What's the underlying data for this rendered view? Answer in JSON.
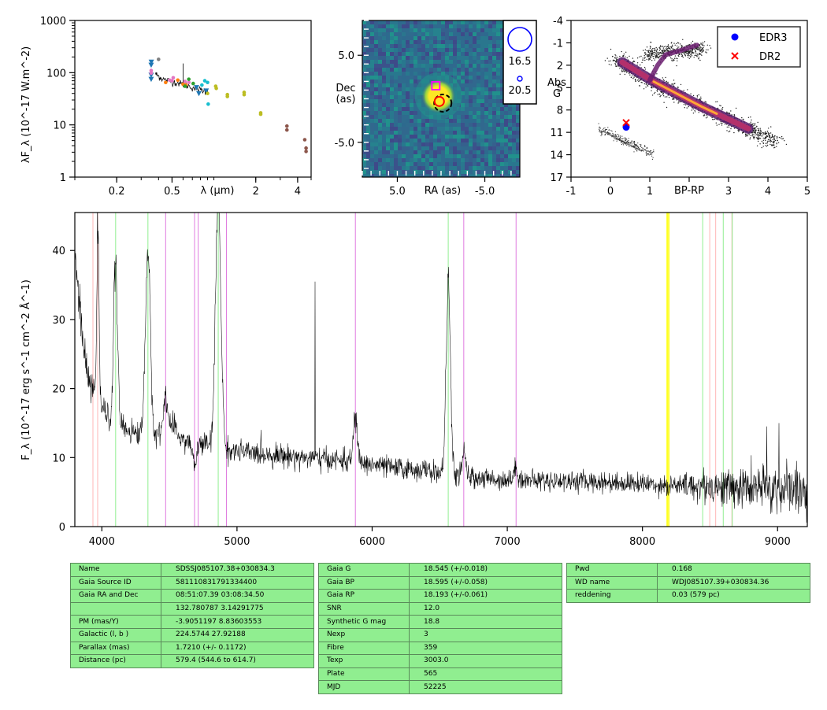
{
  "chart_data": [
    {
      "type": "scatter",
      "panel": "sed",
      "ylabel": "λF_λ (10^-17 W.m^-2)",
      "xlabel": "λ (μm)",
      "xscale": "log",
      "yscale": "log",
      "xlim": [
        0.1,
        5.0
      ],
      "ylim": [
        1,
        1000
      ],
      "xticks": [
        {
          "v": 0.2,
          "t": "0.2"
        },
        {
          "v": 0.5,
          "t": "0.5"
        },
        {
          "v": 2,
          "t": "2"
        },
        {
          "v": 4,
          "t": "4"
        }
      ],
      "yticks": [
        {
          "v": 1,
          "t": "1"
        },
        {
          "v": 10,
          "t": "10"
        },
        {
          "v": 100,
          "t": "100"
        },
        {
          "v": 1000,
          "t": "1000"
        }
      ],
      "series": [
        {
          "color": "#1f77b4",
          "marker": "triangle-down",
          "points": [
            [
              0.354,
              75
            ],
            [
              0.354,
              90
            ],
            [
              0.354,
              140
            ],
            [
              0.355,
              160
            ],
            [
              0.75,
              52
            ],
            [
              0.78,
              40
            ],
            [
              0.88,
              45
            ]
          ]
        },
        {
          "color": "#e377c2",
          "marker": "dot",
          "points": [
            [
              0.354,
              98
            ],
            [
              0.354,
              110
            ],
            [
              0.48,
              72
            ],
            [
              0.5,
              70
            ],
            [
              0.51,
              80
            ],
            [
              0.62,
              68
            ],
            [
              0.66,
              65
            ]
          ]
        },
        {
          "color": "#ff7f0e",
          "marker": "dot",
          "points": [
            [
              0.45,
              65
            ],
            [
              0.55,
              72
            ],
            [
              0.6,
              60
            ],
            [
              0.63,
              58
            ]
          ]
        },
        {
          "color": "#2ca02c",
          "marker": "dot",
          "points": [
            [
              0.62,
              55
            ],
            [
              0.66,
              75
            ],
            [
              0.71,
              62
            ]
          ]
        },
        {
          "color": "#17becf",
          "marker": "dot",
          "points": [
            [
              0.82,
              58
            ],
            [
              0.86,
              70
            ],
            [
              0.9,
              65
            ],
            [
              0.91,
              25
            ]
          ]
        },
        {
          "color": "#bcbd22",
          "marker": "dot",
          "points": [
            [
              0.9,
              40
            ],
            [
              1.03,
              55
            ],
            [
              1.04,
              50
            ],
            [
              1.25,
              38
            ],
            [
              1.25,
              35
            ],
            [
              1.65,
              42
            ],
            [
              1.65,
              38
            ],
            [
              2.17,
              17
            ],
            [
              2.17,
              16
            ]
          ]
        },
        {
          "color": "#8c564b",
          "marker": "dot",
          "points": [
            [
              3.35,
              9.5
            ],
            [
              3.35,
              8.0
            ],
            [
              4.5,
              5.2
            ],
            [
              4.6,
              3.6
            ],
            [
              4.6,
              3.1
            ]
          ]
        },
        {
          "color": "#7f7f7f",
          "marker": "dot",
          "points": [
            [
              0.4,
              180
            ]
          ]
        }
      ],
      "spectrum": [
        [
          0.38,
          95
        ],
        [
          0.4,
          86
        ],
        [
          0.42,
          78
        ],
        [
          0.45,
          72
        ],
        [
          0.48,
          70
        ],
        [
          0.52,
          66
        ],
        [
          0.56,
          63
        ],
        [
          0.6,
          60
        ],
        [
          0.65,
          56
        ],
        [
          0.7,
          52
        ],
        [
          0.75,
          49
        ],
        [
          0.8,
          47
        ],
        [
          0.86,
          45
        ],
        [
          0.91,
          44
        ]
      ]
    },
    {
      "type": "heatmap",
      "panel": "image",
      "xlabel": "RA (as)",
      "ylabel": "Dec\n(as)",
      "xlim": [
        9.0,
        -9.0
      ],
      "ylim": [
        -9.0,
        9.0
      ],
      "xticks": [
        {
          "v": 5.0,
          "t": "5.0"
        },
        {
          "v": -5.0,
          "t": "-5.0"
        }
      ],
      "yticks": [
        {
          "v": 5.0,
          "t": "5.0"
        },
        {
          "v": -5.0,
          "t": "-5.0"
        }
      ],
      "legend": [
        {
          "label": "16.5"
        },
        {
          "label": "20.5"
        }
      ]
    },
    {
      "type": "scatter",
      "panel": "hr",
      "xlabel": "BP-RP",
      "ylabel": "Abs\nG",
      "xlim": [
        -1,
        5
      ],
      "ylim": [
        17,
        -4
      ],
      "xticks": [
        {
          "v": -1,
          "t": "-1"
        },
        {
          "v": 0,
          "t": "0"
        },
        {
          "v": 1,
          "t": "1"
        },
        {
          "v": 3,
          "t": "3"
        },
        {
          "v": 4,
          "t": "4"
        },
        {
          "v": 5,
          "t": "5"
        }
      ],
      "yticks": [
        {
          "v": -4,
          "t": "-4"
        },
        {
          "v": -1,
          "t": "-1"
        },
        {
          "v": 2,
          "t": "2"
        },
        {
          "v": 5,
          "t": "5"
        },
        {
          "v": 8,
          "t": "8"
        },
        {
          "v": 11,
          "t": "11"
        },
        {
          "v": 14,
          "t": "14"
        },
        {
          "v": 17,
          "t": "17"
        }
      ],
      "series": [
        {
          "name": "EDR3",
          "color": "#0000ff",
          "marker": "dot",
          "points": [
            [
              0.4,
              10.3
            ]
          ]
        },
        {
          "name": "DR2",
          "color": "#ff0000",
          "marker": "x",
          "points": [
            [
              0.4,
              9.7
            ]
          ]
        }
      ],
      "legend": "upper right"
    },
    {
      "type": "line",
      "panel": "spectrum",
      "ylabel": "F_λ (10^-17 erg s^-1 cm^-2 Å^-1)",
      "xlim": [
        3800,
        9220
      ],
      "ylim": [
        0,
        45.5
      ],
      "xticks": [
        {
          "v": 4000,
          "t": "4000"
        },
        {
          "v": 5000,
          "t": "5000"
        },
        {
          "v": 6000,
          "t": "6000"
        },
        {
          "v": 7000,
          "t": "7000"
        },
        {
          "v": 8000,
          "t": "8000"
        },
        {
          "v": 9000,
          "t": "9000"
        }
      ],
      "yticks": [
        {
          "v": 0,
          "t": "0"
        },
        {
          "v": 10,
          "t": "10"
        },
        {
          "v": 20,
          "t": "20"
        },
        {
          "v": 30,
          "t": "30"
        },
        {
          "v": 40,
          "t": "40"
        }
      ],
      "continuum": [
        [
          3800,
          40
        ],
        [
          3830,
          33
        ],
        [
          3860,
          27
        ],
        [
          3890,
          22
        ],
        [
          3920,
          20
        ],
        [
          3960,
          19
        ],
        [
          4000,
          17.5
        ],
        [
          4050,
          15.5
        ],
        [
          4150,
          14.5
        ],
        [
          4250,
          13.5
        ],
        [
          4400,
          13.2
        ],
        [
          4500,
          15
        ],
        [
          4600,
          12.5
        ],
        [
          4750,
          12
        ],
        [
          4950,
          11
        ],
        [
          5200,
          10.5
        ],
        [
          5500,
          10
        ],
        [
          5800,
          9.5
        ],
        [
          6000,
          9
        ],
        [
          6200,
          8.4
        ],
        [
          6400,
          8.2
        ],
        [
          6550,
          7.5
        ],
        [
          6800,
          7
        ],
        [
          7000,
          6.8
        ],
        [
          7200,
          6.7
        ],
        [
          7500,
          6.6
        ],
        [
          7800,
          6.4
        ],
        [
          8000,
          6.2
        ],
        [
          8200,
          6
        ],
        [
          8500,
          5.8
        ],
        [
          8800,
          5.6
        ],
        [
          9000,
          5.4
        ],
        [
          9220,
          5.3
        ]
      ],
      "emission_lines": [
        [
          3970,
          43.5,
          8
        ],
        [
          4101,
          38.5,
          14
        ],
        [
          4340,
          40,
          18
        ],
        [
          4471,
          19.5,
          12
        ],
        [
          4686,
          9,
          16
        ],
        [
          4861,
          47,
          20
        ],
        [
          5876,
          16,
          14
        ],
        [
          6563,
          35.5,
          16
        ],
        [
          6678,
          10.5,
          14
        ],
        [
          7065,
          8.5,
          14
        ]
      ],
      "spikes": [
        [
          5577,
          35.5
        ],
        [
          8190,
          4.5
        ],
        [
          8920,
          14.5
        ],
        [
          9010,
          15
        ]
      ],
      "lines": [
        {
          "x": 3934,
          "color": "#ffb6b6"
        },
        {
          "x": 3969,
          "color": "#ffb6b6"
        },
        {
          "x": 4102,
          "color": "#90ee90"
        },
        {
          "x": 4341,
          "color": "#90ee90"
        },
        {
          "x": 4472,
          "color": "#e07be0"
        },
        {
          "x": 4686,
          "color": "#e07be0"
        },
        {
          "x": 4713,
          "color": "#e07be0"
        },
        {
          "x": 4861,
          "color": "#90ee90"
        },
        {
          "x": 4922,
          "color": "#e07be0"
        },
        {
          "x": 5876,
          "color": "#e07be0"
        },
        {
          "x": 6563,
          "color": "#90ee90"
        },
        {
          "x": 6678,
          "color": "#e07be0"
        },
        {
          "x": 7065,
          "color": "#e07be0"
        },
        {
          "x": 8183,
          "color": "#ffff00"
        },
        {
          "x": 8195,
          "color": "#ffff00"
        },
        {
          "x": 8446,
          "color": "#90ee90"
        },
        {
          "x": 8498,
          "color": "#ffb6b6"
        },
        {
          "x": 8542,
          "color": "#ffb6b6"
        },
        {
          "x": 8598,
          "color": "#90ee90"
        },
        {
          "x": 8662,
          "color": "#ffb6b6"
        },
        {
          "x": 8665,
          "color": "#90ee90"
        }
      ]
    }
  ],
  "tables": [
    [
      [
        "Name",
        "SDSSJ085107.38+030834.3"
      ],
      [
        "Gaia Source ID",
        "581110831791334400"
      ],
      [
        "Gaia RA and Dec",
        "08:51:07.39    03:08:34.50"
      ],
      [
        "",
        "132.780787    3.14291775"
      ],
      [
        "PM (mas/Y)",
        "-3.9051197    8.83603553"
      ],
      [
        "Galactic (l, b )",
        "224.5744    27.92188"
      ],
      [
        "Parallax (mas)",
        "1.7210 (+/- 0.1172)"
      ],
      [
        "Distance (pc)",
        "579.4 (544.6 to 614.7)"
      ]
    ],
    [
      [
        "Gaia G",
        "18.545 (+/-0.018)"
      ],
      [
        "Gaia BP",
        "18.595 (+/-0.058)"
      ],
      [
        "Gaia RP",
        "18.193 (+/-0.061)"
      ],
      [
        "SNR",
        "12.0"
      ],
      [
        "Synthetic G mag",
        "18.8"
      ],
      [
        "Nexp",
        "3"
      ],
      [
        "Fibre",
        "359"
      ],
      [
        "Texp",
        "3003.0"
      ],
      [
        "Plate",
        "565"
      ],
      [
        "MJD",
        "52225"
      ]
    ],
    [
      [
        "Pwd",
        "0.168"
      ],
      [
        "WD name",
        "WDJ085107.39+030834.36"
      ],
      [
        "reddening",
        "0.03 (579 pc)"
      ]
    ]
  ]
}
